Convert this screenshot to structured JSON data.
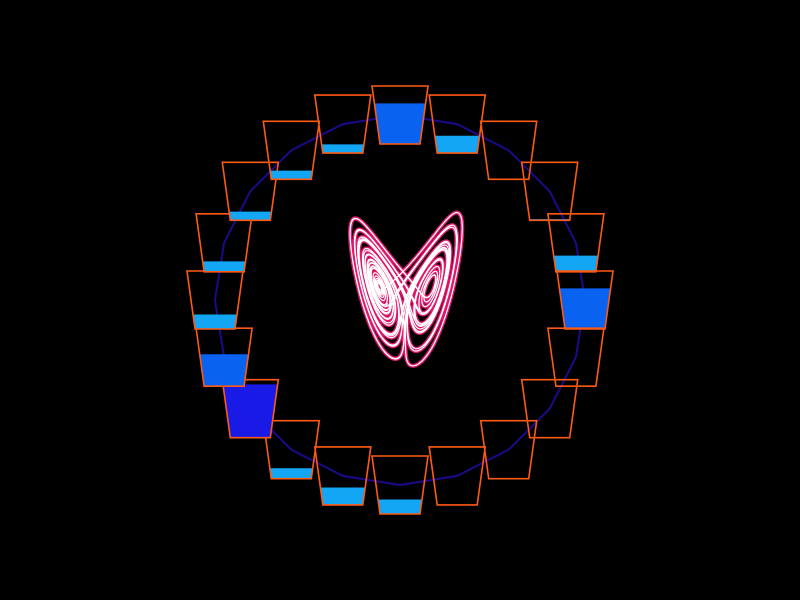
{
  "colors": {
    "background": "#000000",
    "wheel_rim": "#1a0a8c",
    "cup_outline": "#ff5a14",
    "water_light": "#12a6f5",
    "water_mid": "#0a62f0",
    "water_deep": "#1a1ae6",
    "attractor_outer": "#e0186c",
    "attractor_inner": "#ffffff"
  },
  "cups": [
    {
      "fill": 0.7,
      "shade": "mid"
    },
    {
      "fill": 0.3,
      "shade": "light"
    },
    {
      "fill": 0.0,
      "shade": "light"
    },
    {
      "fill": 0.02,
      "shade": "light"
    },
    {
      "fill": 0.28,
      "shade": "light"
    },
    {
      "fill": 0.7,
      "shade": "mid"
    },
    {
      "fill": 0.0,
      "shade": "light"
    },
    {
      "fill": 0.0,
      "shade": "light"
    },
    {
      "fill": 0.0,
      "shade": "light"
    },
    {
      "fill": 0.0,
      "shade": "light"
    },
    {
      "fill": 0.25,
      "shade": "light"
    },
    {
      "fill": 0.3,
      "shade": "light"
    },
    {
      "fill": 0.18,
      "shade": "light"
    },
    {
      "fill": 0.92,
      "shade": "deep"
    },
    {
      "fill": 0.55,
      "shade": "mid"
    },
    {
      "fill": 0.25,
      "shade": "light"
    },
    {
      "fill": 0.18,
      "shade": "light"
    },
    {
      "fill": 0.15,
      "shade": "light"
    },
    {
      "fill": 0.15,
      "shade": "light"
    },
    {
      "fill": 0.15,
      "shade": "light"
    }
  ]
}
